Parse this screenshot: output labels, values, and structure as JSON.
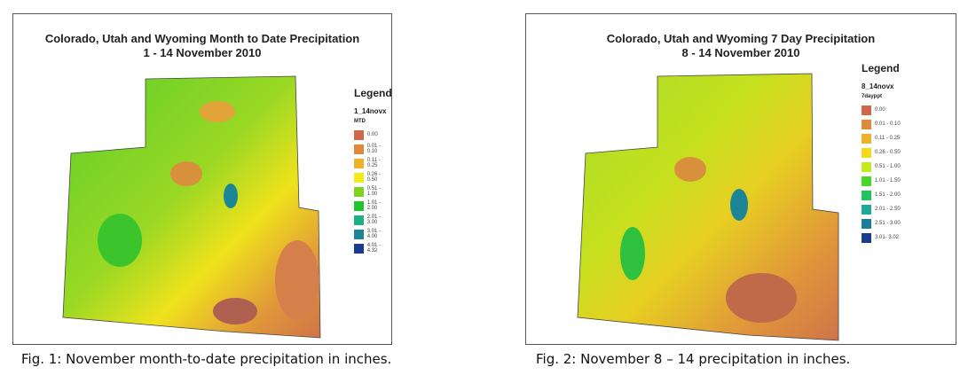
{
  "figures": [
    {
      "title_line1": "Colorado, Utah and Wyoming Month to Date Precipitation",
      "title_line2": "1 - 14 November 2010",
      "legend": {
        "heading": "Legend",
        "layer": "1_14novx",
        "field": "MTD",
        "items": [
          {
            "label": "0.00",
            "color": "#d0674a"
          },
          {
            "label": "0.01 - 0.10",
            "color": "#e0893a"
          },
          {
            "label": "0.11 - 0.25",
            "color": "#eeb22a"
          },
          {
            "label": "0.26 - 0.50",
            "color": "#f5ea1a"
          },
          {
            "label": "0.51 - 1.00",
            "color": "#7ed321"
          },
          {
            "label": "1.01 - 2.00",
            "color": "#22c42e"
          },
          {
            "label": "2.01 - 3.00",
            "color": "#1faf86"
          },
          {
            "label": "3.01 - 4.00",
            "color": "#1d8696"
          },
          {
            "label": "4.01 - 4.32",
            "color": "#173c8e"
          }
        ]
      },
      "caption": "Fig. 1: November month-to-date precipitation in inches."
    },
    {
      "title_line1": "Colorado, Utah and Wyoming 7 Day Precipitation",
      "title_line2": "8 - 14 November 2010",
      "legend": {
        "heading": "Legend",
        "layer": "8_14novx",
        "field": "7dayppt",
        "items": [
          {
            "label": "0.00",
            "color": "#d0674a"
          },
          {
            "label": "0.01 - 0.10",
            "color": "#e0893a"
          },
          {
            "label": "0.11 - 0.25",
            "color": "#eeb22a"
          },
          {
            "label": "0.26 - 0.50",
            "color": "#f5da1a"
          },
          {
            "label": "0.51 - 1.00",
            "color": "#c8e81e"
          },
          {
            "label": "1.01 - 1.50",
            "color": "#4ad622"
          },
          {
            "label": "1.51 - 2.00",
            "color": "#20c45a"
          },
          {
            "label": "2.01 - 2.50",
            "color": "#1fa896"
          },
          {
            "label": "2.51 - 3.00",
            "color": "#1d7e9c"
          },
          {
            "label": "3.01- 3.02",
            "color": "#173c8e"
          }
        ]
      },
      "caption": "Fig. 2: November 8 – 14 precipitation in inches."
    }
  ]
}
